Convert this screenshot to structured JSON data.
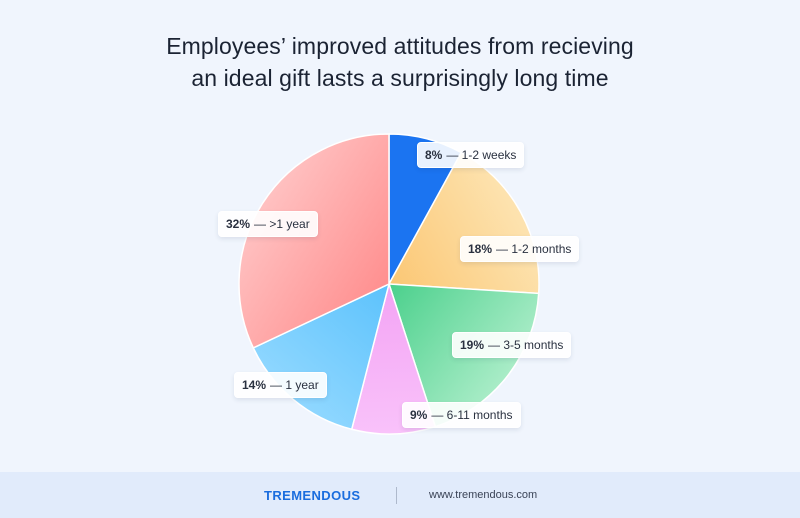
{
  "title": {
    "line1": "Employees’ improved attitudes from recieving",
    "line2": "an ideal gift lasts a surprisingly long time"
  },
  "chart_data": {
    "type": "pie",
    "title": "Employees’ improved attitudes from recieving an ideal gift lasts a surprisingly long time",
    "slices": [
      {
        "label": "1-2 weeks",
        "value": 8,
        "pct_text": "8%",
        "color_a": "#1b74f1",
        "color_b": "#1b74f1"
      },
      {
        "label": "1-2 months",
        "value": 18,
        "pct_text": "18%",
        "color_a": "#fde3b0",
        "color_b": "#fbc774"
      },
      {
        "label": "3-5 months",
        "value": 19,
        "pct_text": "19%",
        "color_a": "#a9ecc7",
        "color_b": "#4bd08c"
      },
      {
        "label": "6-11 months",
        "value": 9,
        "pct_text": "9%",
        "color_a": "#f9c2fa",
        "color_b": "#f3a3f4"
      },
      {
        "label": "1 year",
        "value": 14,
        "pct_text": "14%",
        "color_a": "#8fd7ff",
        "color_b": "#5cc2fc"
      },
      {
        "label": ">1 year",
        "value": 32,
        "pct_text": "32%",
        "color_a": "#ffc1c1",
        "color_b": "#ff8f8f"
      }
    ],
    "separator": "—"
  },
  "footer": {
    "brand": "TREMENDOUS",
    "url": "www.tremendous.com"
  }
}
